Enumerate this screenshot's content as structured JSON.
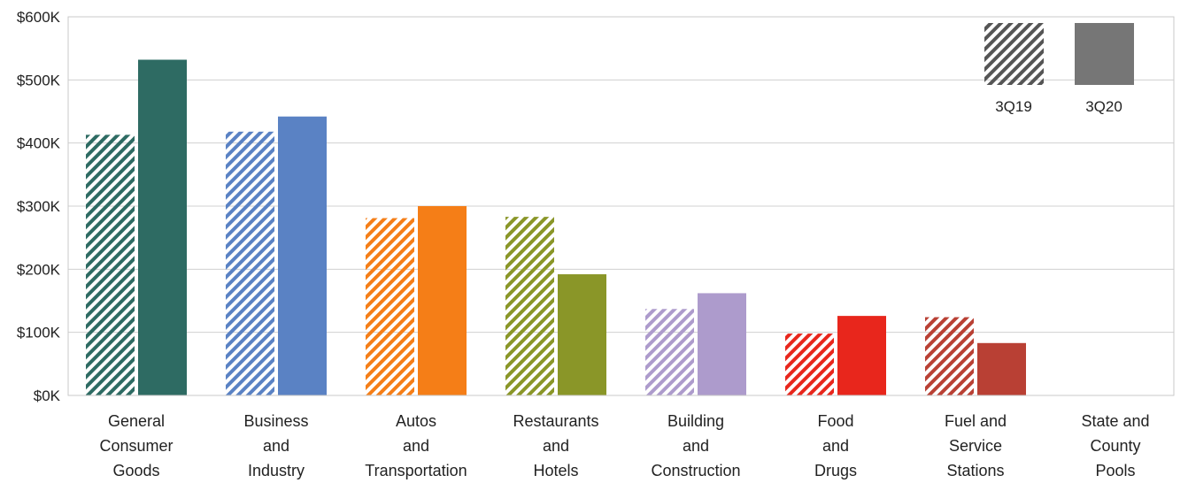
{
  "chart_data": {
    "type": "bar",
    "title": "",
    "xlabel": "",
    "ylabel": "",
    "ylim": [
      0,
      600
    ],
    "y_ticks": [
      0,
      100,
      200,
      300,
      400,
      500,
      600
    ],
    "y_tick_labels": [
      "$0K",
      "$100K",
      "$200K",
      "$300K",
      "$400K",
      "$500K",
      "$600K"
    ],
    "grid": true,
    "legend_position": "top-right",
    "legend": [
      {
        "label": "3Q19",
        "style": "hatched",
        "color": "#555555"
      },
      {
        "label": "3Q20",
        "style": "solid",
        "color": "#767676"
      }
    ],
    "categories": [
      "General Consumer Goods",
      "Business and Industry",
      "Autos and Transportation",
      "Restaurants and Hotels",
      "Building and Construction",
      "Food and Drugs",
      "Fuel and Service Stations",
      "State and County Pools"
    ],
    "category_lines": [
      [
        "General",
        "Consumer",
        "Goods"
      ],
      [
        "Business",
        "and",
        "Industry"
      ],
      [
        "Autos",
        "and",
        "Transportation"
      ],
      [
        "Restaurants",
        "and",
        "Hotels"
      ],
      [
        "Building",
        "and",
        "Construction"
      ],
      [
        "Food",
        "and",
        "Drugs"
      ],
      [
        "Fuel and",
        "Service",
        "Stations"
      ],
      [
        "State and",
        "County",
        "Pools"
      ]
    ],
    "category_colors": [
      "#2e6b63",
      "#5a82c4",
      "#f57e17",
      "#8a9628",
      "#ad9bcc",
      "#e8261c",
      "#b94034",
      "#888888"
    ],
    "series": [
      {
        "name": "3Q19",
        "style": "hatched",
        "values": [
          413,
          418,
          281,
          283,
          137,
          98,
          124,
          0
        ]
      },
      {
        "name": "3Q20",
        "style": "solid",
        "values": [
          532,
          442,
          300,
          192,
          162,
          126,
          83,
          0
        ]
      }
    ]
  }
}
